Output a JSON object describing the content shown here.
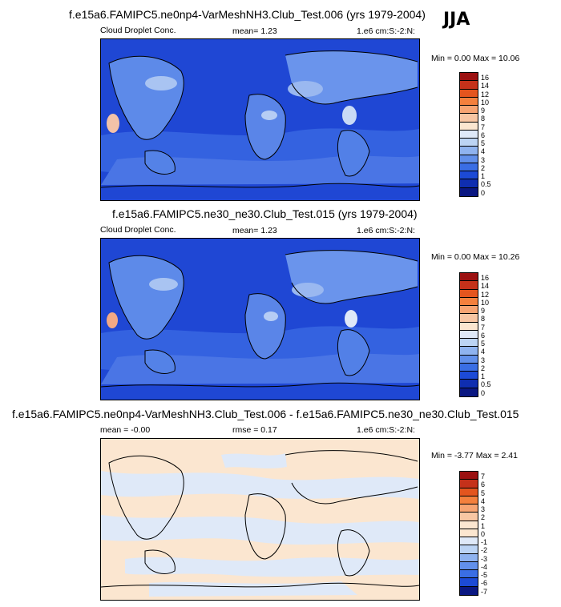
{
  "season": "JJA",
  "panels": [
    {
      "title": "f.e15a6.FAMIPC5.ne0np4-VarMeshNH3.Club_Test.006 (yrs 1979-2004)",
      "variable": "Cloud Droplet Conc.",
      "stat": "mean=   1.23",
      "units": "1.e6 cm:S:-2:N:",
      "minmax": "Min =  0.00 Max = 10.06",
      "colorbar_labels": [
        "16",
        "14",
        "12",
        "10",
        "9",
        "8",
        "7",
        "6",
        "5",
        "4",
        "3",
        "2",
        "1",
        "0.5",
        "0"
      ],
      "colorbar_colors": [
        "#9b1010",
        "#c5311a",
        "#e4551e",
        "#f4803d",
        "#f7a472",
        "#f8c6a3",
        "#fbe6d0",
        "#dfe9f8",
        "#bcd4f4",
        "#8fb3ef",
        "#6290ea",
        "#3a6ee4",
        "#1c4ad6",
        "#0f2eb0",
        "#0a1782"
      ]
    },
    {
      "title": "f.e15a6.FAMIPC5.ne30_ne30.Club_Test.015 (yrs 1979-2004)",
      "variable": "Cloud Droplet Conc.",
      "stat": "mean=   1.23",
      "units": "1.e6 cm:S:-2:N:",
      "minmax": "Min =  0.00 Max = 10.26",
      "colorbar_labels": [
        "16",
        "14",
        "12",
        "10",
        "9",
        "8",
        "7",
        "6",
        "5",
        "4",
        "3",
        "2",
        "1",
        "0.5",
        "0"
      ],
      "colorbar_colors": [
        "#9b1010",
        "#c5311a",
        "#e4551e",
        "#f4803d",
        "#f7a472",
        "#f8c6a3",
        "#fbe6d0",
        "#dfe9f8",
        "#bcd4f4",
        "#8fb3ef",
        "#6290ea",
        "#3a6ee4",
        "#1c4ad6",
        "#0f2eb0",
        "#0a1782"
      ]
    },
    {
      "title": "f.e15a6.FAMIPC5.ne0np4-VarMeshNH3.Club_Test.006 - f.e15a6.FAMIPC5.ne30_ne30.Club_Test.015",
      "variable": "mean =  -0.00",
      "stat": "rmse =   0.17",
      "units": "1.e6 cm:S:-2:N:",
      "minmax": "Min = -3.77 Max =  2.41",
      "colorbar_labels": [
        "7",
        "6",
        "5",
        "4",
        "3",
        "2",
        "1",
        "0",
        "-1",
        "-2",
        "-3",
        "-4",
        "-5",
        "-6",
        "-7"
      ],
      "colorbar_colors": [
        "#9b1010",
        "#c5311a",
        "#e4551e",
        "#f4803d",
        "#f7a472",
        "#f8c6a3",
        "#fbe6d0",
        "#fbe6d0",
        "#dfe9f8",
        "#bcd4f4",
        "#8fb3ef",
        "#6290ea",
        "#3a6ee4",
        "#1c4ad6",
        "#0a1782"
      ]
    }
  ]
}
